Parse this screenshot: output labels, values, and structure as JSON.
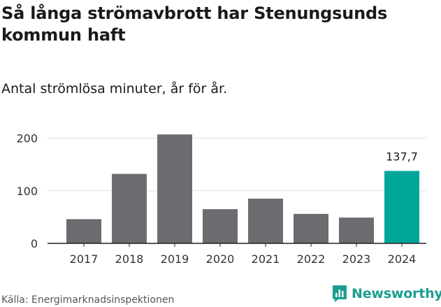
{
  "title": "Så långa strömavbrott har Stenungsunds kommun haft",
  "subtitle": "Antal strömlösa minuter, år för år.",
  "source": "Källa: Energimarknadsinspektionen",
  "brand": {
    "name": "Newsworthy",
    "color": "#1a9e8f",
    "icon": "bar-chart-logo-icon"
  },
  "colors": {
    "bar": "#6d6b70",
    "highlight": "#00a69a",
    "grid": "#e0e0e0",
    "axis": "#222222"
  },
  "chart_data": {
    "type": "bar",
    "title": "Så långa strömavbrott har Stenungsunds kommun haft",
    "subtitle": "Antal strömlösa minuter, år för år.",
    "xlabel": "",
    "ylabel": "",
    "categories": [
      "2017",
      "2018",
      "2019",
      "2020",
      "2021",
      "2022",
      "2023",
      "2024"
    ],
    "values": [
      46,
      132,
      207,
      65,
      85,
      56,
      49,
      137.7
    ],
    "highlight_index": 7,
    "data_labels": [
      {
        "index": 7,
        "text": "137,7"
      }
    ],
    "ylim": [
      0,
      210
    ],
    "yticks": [
      0,
      100,
      200
    ],
    "grid": true
  }
}
